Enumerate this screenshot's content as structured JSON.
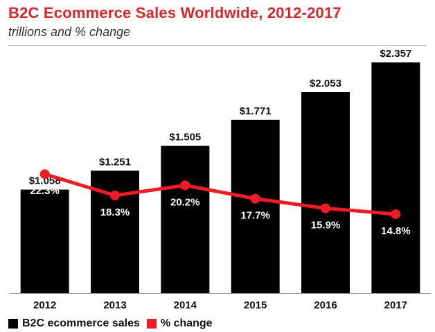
{
  "chart_data": {
    "type": "bar",
    "title": "B2C Ecommerce Sales Worldwide, 2012-2017",
    "subtitle": "trillions and % change",
    "categories": [
      "2012",
      "2013",
      "2014",
      "2015",
      "2016",
      "2017"
    ],
    "series": [
      {
        "name": "B2C ecommerce sales",
        "type": "bar",
        "values": [
          1.058,
          1.251,
          1.505,
          1.771,
          2.053,
          2.357
        ],
        "labels": [
          "$1.058",
          "$1.251",
          "$1.505",
          "$1.771",
          "$2.053",
          "$2.357"
        ],
        "color": "#000000"
      },
      {
        "name": "% change",
        "type": "line",
        "values": [
          22.3,
          18.3,
          20.2,
          17.7,
          15.9,
          14.8
        ],
        "labels": [
          "22.3%",
          "18.3%",
          "20.2%",
          "17.7%",
          "15.9%",
          "14.8%"
        ],
        "color": "#ee1c25"
      }
    ],
    "ylim": [
      0,
      2.4
    ],
    "y2lim": [
      0,
      44
    ],
    "grid": false,
    "legend": "bottom-left"
  }
}
